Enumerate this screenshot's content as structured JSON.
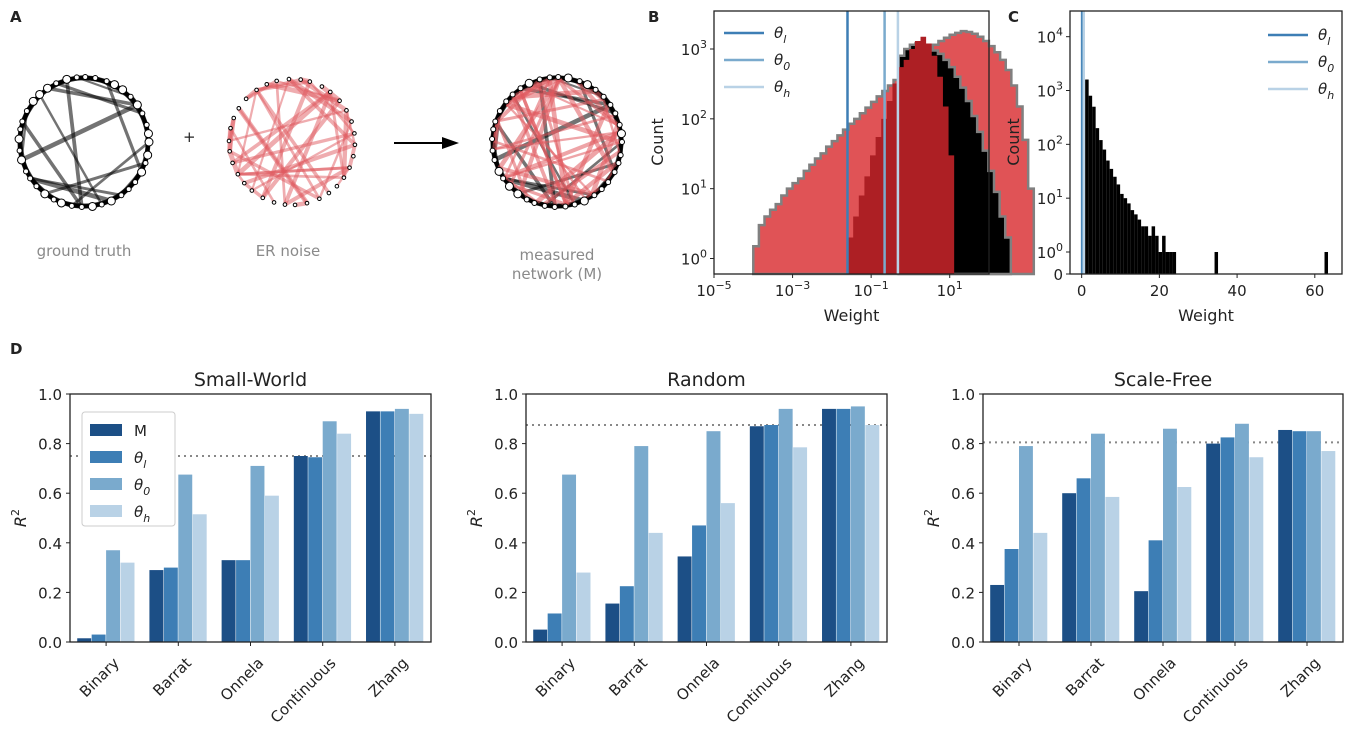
{
  "panel_labels": {
    "a": "A",
    "b": "B",
    "c": "C",
    "d": "D"
  },
  "panel_a": {
    "captions": [
      "ground truth",
      "ER noise",
      "measured",
      "network (M)"
    ],
    "plus": "+",
    "colors": {
      "truth": "#000000",
      "noise": "#e05a5f"
    }
  },
  "colors": {
    "M": "#1c4f86",
    "theta_l": "#3d7eb5",
    "theta_0": "#7aaacd",
    "theta_h": "#b9d2e6",
    "noise": "#e05356",
    "overlap": "#ad1f24",
    "truth": "#000000",
    "outline": "#808080"
  },
  "chart_data": [
    {
      "id": "B",
      "type": "bar",
      "subtype": "log-log histogram",
      "xlabel": "Weight",
      "ylabel": "Count",
      "x_scale": "log",
      "y_scale": "log",
      "xlim": [
        1e-05,
        100
      ],
      "ylim": [
        0.6,
        3500
      ],
      "x_ticks": [
        "10^-5",
        "10^-3",
        "10^-1",
        "10^1"
      ],
      "y_ticks": [
        "10^0",
        "10^1",
        "10^2",
        "10^3"
      ],
      "legend": [
        "θl",
        "θ0",
        "θh"
      ],
      "legend_position": "top-left",
      "thresholds": {
        "theta_l": 0.025,
        "theta_0": 0.22,
        "theta_h": 0.48
      },
      "series": [
        {
          "name": "noise",
          "color": "#e05356",
          "log10_edges_start": -4,
          "log10_bin_width": 0.1428,
          "values": [
            1.5,
            3,
            4,
            5,
            6,
            8,
            10,
            12,
            14,
            18,
            22,
            27,
            32,
            40,
            48,
            58,
            70,
            85,
            100,
            120,
            145,
            175,
            210,
            250,
            300,
            360,
            430,
            510,
            610,
            720,
            850,
            1000,
            1150,
            1300,
            1450,
            1600,
            1700,
            1800,
            1750,
            1650,
            1500,
            1300,
            1100,
            900,
            700,
            500,
            300,
            150,
            50,
            10
          ]
        },
        {
          "name": "overlap",
          "color": "#ad1f24",
          "log10_edges_start": -1.6,
          "log10_bin_width": 0.1428,
          "values": [
            2,
            4,
            8,
            15,
            30,
            55,
            100,
            180,
            320,
            550,
            700,
            1000,
            1300,
            1500,
            1200,
            800,
            400,
            150,
            30
          ]
        },
        {
          "name": "ground truth",
          "color": "#000000",
          "log10_edges_start": -0.3,
          "log10_bin_width": 0.1428,
          "values": [
            800,
            1000,
            1150,
            1200,
            1150,
            1050,
            950,
            850,
            700,
            550,
            400,
            280,
            180,
            110,
            65,
            35,
            18,
            9,
            4,
            2
          ]
        }
      ]
    },
    {
      "id": "C",
      "type": "bar",
      "subtype": "histogram",
      "xlabel": "Weight",
      "ylabel": "Count",
      "y_scale": "symlog",
      "xlim": [
        -3,
        67
      ],
      "ylim": [
        0,
        30000
      ],
      "x_ticks": [
        "0",
        "20",
        "40",
        "60"
      ],
      "y_ticks": [
        "0",
        "10^0",
        "10^1",
        "10^2",
        "10^3",
        "10^4"
      ],
      "legend": [
        "θl",
        "θ0",
        "θh"
      ],
      "legend_position": "top-right",
      "thresholds": {
        "theta_l": 0.05,
        "theta_0": 0.3,
        "theta_h": 0.6
      },
      "bin_width": 0.9,
      "series": [
        {
          "name": "noise",
          "color": "#e05356",
          "x": [
            0
          ],
          "values": [
            25000
          ]
        },
        {
          "name": "ground truth",
          "color": "#000000",
          "x": [
            0.9,
            1.8,
            2.7,
            3.6,
            4.5,
            5.4,
            6.3,
            7.2,
            8.1,
            9.0,
            9.9,
            10.8,
            11.7,
            12.6,
            13.5,
            14.4,
            15.3,
            16.2,
            17.1,
            18.0,
            18.9,
            19.8,
            20.7,
            21.6,
            22.5,
            23.4,
            34.2,
            62.5
          ],
          "values": [
            1600,
            800,
            500,
            200,
            120,
            80,
            50,
            35,
            25,
            18,
            12,
            10,
            8,
            6,
            5,
            4,
            3,
            3,
            2,
            3,
            2,
            1,
            2,
            1,
            1,
            1,
            1,
            1
          ]
        }
      ]
    },
    {
      "id": "D-small-world",
      "type": "bar",
      "title": "Small-World",
      "ylabel": "R^2",
      "ylim": [
        0,
        1.0
      ],
      "y_ticks": [
        "0.0",
        "0.2",
        "0.4",
        "0.6",
        "0.8",
        "1.0"
      ],
      "categories": [
        "Binary",
        "Barrat",
        "Onnela",
        "Continuous",
        "Zhang"
      ],
      "reference_line": 0.75,
      "legend": [
        "M",
        "θl",
        "θ0",
        "θh"
      ],
      "legend_position": "upper-left",
      "series": [
        {
          "name": "M",
          "values": [
            0.015,
            0.29,
            0.33,
            0.75,
            0.93
          ]
        },
        {
          "name": "θl",
          "values": [
            0.03,
            0.3,
            0.33,
            0.745,
            0.93
          ]
        },
        {
          "name": "θ0",
          "values": [
            0.37,
            0.675,
            0.71,
            0.89,
            0.94
          ]
        },
        {
          "name": "θh",
          "values": [
            0.32,
            0.515,
            0.59,
            0.84,
            0.92
          ]
        }
      ]
    },
    {
      "id": "D-random",
      "type": "bar",
      "title": "Random",
      "ylabel": "R^2",
      "ylim": [
        0,
        1.0
      ],
      "y_ticks": [
        "0.0",
        "0.2",
        "0.4",
        "0.6",
        "0.8",
        "1.0"
      ],
      "categories": [
        "Binary",
        "Barrat",
        "Onnela",
        "Continuous",
        "Zhang"
      ],
      "reference_line": 0.875,
      "series": [
        {
          "name": "M",
          "values": [
            0.05,
            0.155,
            0.345,
            0.87,
            0.94
          ]
        },
        {
          "name": "θl",
          "values": [
            0.115,
            0.225,
            0.47,
            0.875,
            0.94
          ]
        },
        {
          "name": "θ0",
          "values": [
            0.675,
            0.79,
            0.85,
            0.94,
            0.95
          ]
        },
        {
          "name": "θh",
          "values": [
            0.28,
            0.44,
            0.56,
            0.785,
            0.875
          ]
        }
      ]
    },
    {
      "id": "D-scale-free",
      "type": "bar",
      "title": "Scale-Free",
      "ylabel": "R^2",
      "ylim": [
        0,
        1.0
      ],
      "y_ticks": [
        "0.0",
        "0.2",
        "0.4",
        "0.6",
        "0.8",
        "1.0"
      ],
      "categories": [
        "Binary",
        "Barrat",
        "Onnela",
        "Continuous",
        "Zhang"
      ],
      "reference_line": 0.805,
      "series": [
        {
          "name": "M",
          "values": [
            0.23,
            0.6,
            0.205,
            0.8,
            0.855
          ]
        },
        {
          "name": "θl",
          "values": [
            0.375,
            0.66,
            0.41,
            0.825,
            0.85
          ]
        },
        {
          "name": "θ0",
          "values": [
            0.79,
            0.84,
            0.86,
            0.88,
            0.85
          ]
        },
        {
          "name": "θh",
          "values": [
            0.44,
            0.585,
            0.625,
            0.745,
            0.77
          ]
        }
      ]
    }
  ]
}
